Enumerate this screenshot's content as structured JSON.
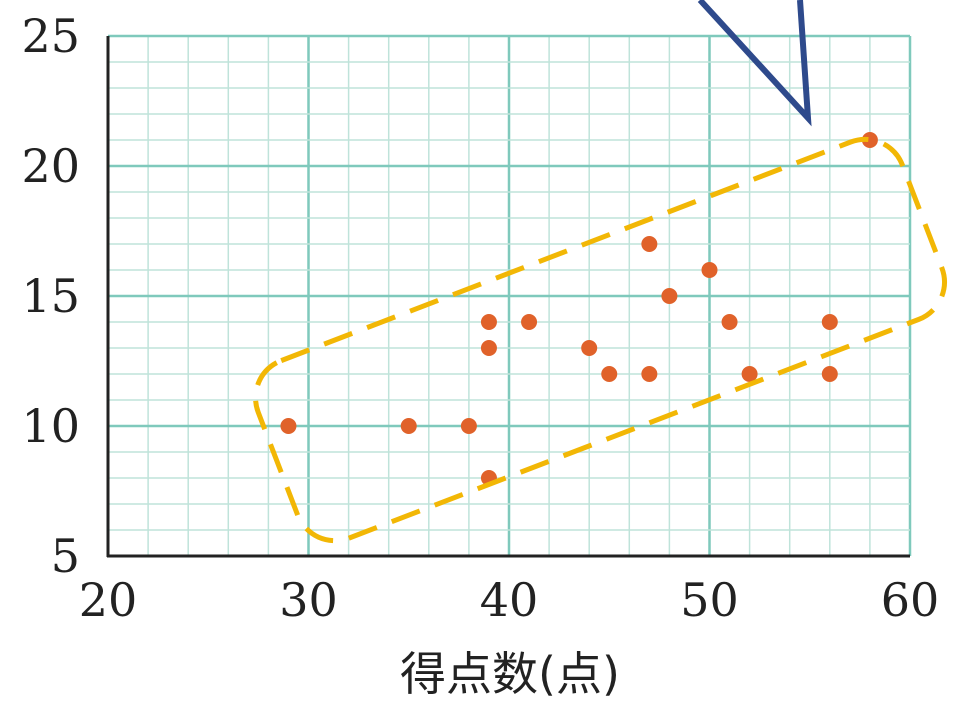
{
  "chart_data": {
    "type": "scatter",
    "xlabel": "得点数(点)",
    "ylabel": "",
    "xlim": [
      20,
      60
    ],
    "ylim": [
      5,
      25
    ],
    "x_ticks": [
      "20",
      "30",
      "40",
      "50",
      "60"
    ],
    "y_ticks": [
      "5",
      "10",
      "15",
      "20",
      "25"
    ],
    "grid": true,
    "series": [
      {
        "points": [
          [
            29,
            10
          ],
          [
            35,
            10
          ],
          [
            38,
            10
          ],
          [
            39,
            8
          ],
          [
            39,
            13
          ],
          [
            39,
            14
          ],
          [
            41,
            14
          ],
          [
            44,
            13
          ],
          [
            45,
            12
          ],
          [
            47,
            12
          ],
          [
            47,
            17
          ],
          [
            48,
            15
          ],
          [
            50,
            16
          ],
          [
            51,
            14
          ],
          [
            52,
            12
          ],
          [
            56,
            14
          ],
          [
            56,
            12
          ],
          [
            58,
            21
          ]
        ]
      }
    ],
    "annotations": [
      {
        "kind": "dashed-rounded-rectangle",
        "color": "#F2B705"
      },
      {
        "kind": "callout-pointer",
        "color": "#2E4A8C"
      }
    ],
    "colors": {
      "grid_minor": "#BFE3DA",
      "grid_major": "#7FC9BC",
      "axis": "#222222",
      "point": "#E0622A"
    }
  }
}
